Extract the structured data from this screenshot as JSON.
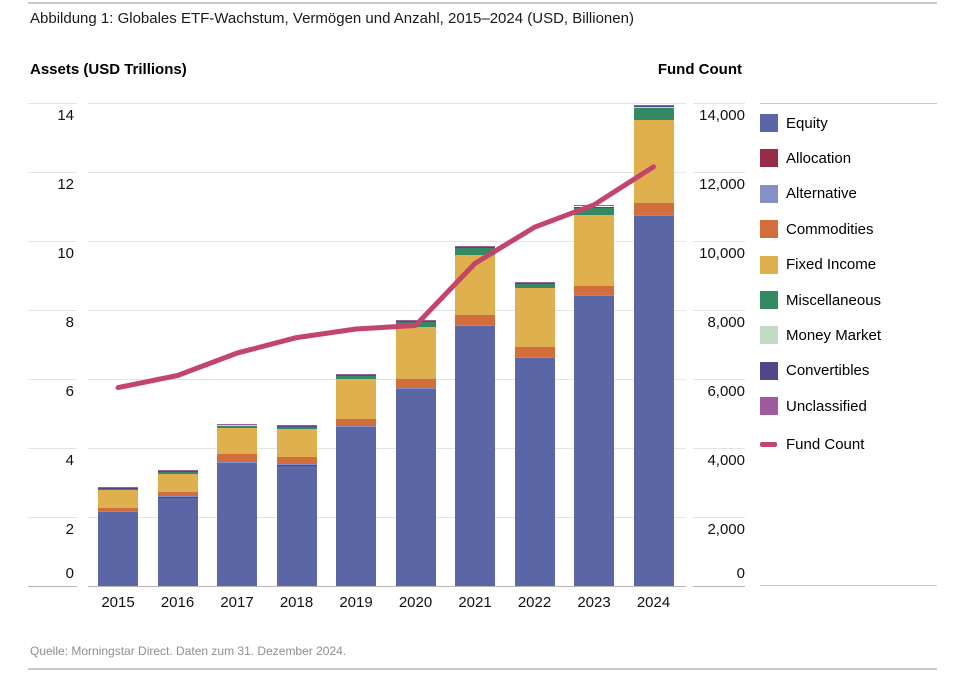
{
  "title": "Abbildung 1: Globales ETF-Wachstum, Vermögen und Anzahl, 2015–2024 (USD, Billionen)",
  "left_axis_title": "Assets (USD Trillions)",
  "right_axis_title": "Fund Count",
  "footer": "Quelle: Morningstar Direct. Daten zum 31. Dezember 2024.",
  "colors": {
    "grid": "#e4e4e4",
    "axis_line": "#b5b5b5",
    "frame_line": "#c9c9c9",
    "equity": "#5B66A7",
    "allocation": "#992B49",
    "alternative": "#8591C4",
    "commodities": "#D26E3C",
    "fixed_income": "#E0B04E",
    "miscellaneous": "#338A62",
    "money_market": "#C2DCC5",
    "convertibles": "#524589",
    "unclassified": "#9E5C9F",
    "fund_count_line": "#C4456B"
  },
  "chart_data": {
    "type": "bar",
    "subtype": "stacked-bars-with-dual-axis-line",
    "title": "Abbildung 1: Globales ETF-Wachstum, Vermögen und Anzahl, 2015–2024 (USD, Billionen)",
    "categories": [
      "2015",
      "2016",
      "2017",
      "2018",
      "2019",
      "2020",
      "2021",
      "2022",
      "2023",
      "2024"
    ],
    "series": [
      {
        "name": "Equity",
        "color_key": "equity",
        "values": [
          2.15,
          2.58,
          3.57,
          3.51,
          4.62,
          5.72,
          7.55,
          6.62,
          8.42,
          10.74
        ]
      },
      {
        "name": "Allocation",
        "color_key": "allocation",
        "values": [
          0.01,
          0.01,
          0.01,
          0.01,
          0.01,
          0.01,
          0.01,
          0.01,
          0.01,
          0.01
        ]
      },
      {
        "name": "Alternative",
        "color_key": "alternative",
        "values": [
          0.01,
          0.01,
          0.01,
          0.01,
          0.01,
          0.01,
          0.01,
          0.01,
          0.01,
          0.01
        ]
      },
      {
        "name": "Commodities",
        "color_key": "commodities",
        "values": [
          0.1,
          0.12,
          0.23,
          0.21,
          0.2,
          0.26,
          0.29,
          0.29,
          0.26,
          0.35
        ]
      },
      {
        "name": "Fixed Income",
        "color_key": "fixed_income",
        "values": [
          0.52,
          0.53,
          0.76,
          0.82,
          1.16,
          1.51,
          1.74,
          1.71,
          2.06,
          2.41
        ]
      },
      {
        "name": "Miscellaneous",
        "color_key": "miscellaneous",
        "values": [
          0.04,
          0.07,
          0.08,
          0.06,
          0.09,
          0.14,
          0.2,
          0.12,
          0.21,
          0.34
        ]
      },
      {
        "name": "Money Market",
        "color_key": "money_market",
        "values": [
          0.01,
          0.01,
          0.02,
          0.02,
          0.02,
          0.02,
          0.02,
          0.02,
          0.02,
          0.03
        ]
      },
      {
        "name": "Convertibles",
        "color_key": "convertibles",
        "values": [
          0.01,
          0.01,
          0.01,
          0.01,
          0.01,
          0.01,
          0.01,
          0.01,
          0.01,
          0.01
        ]
      },
      {
        "name": "Unclassified",
        "color_key": "unclassified",
        "values": [
          0.01,
          0.01,
          0.02,
          0.03,
          0.03,
          0.03,
          0.03,
          0.03,
          0.03,
          0.03
        ]
      }
    ],
    "line_series": {
      "name": "Fund Count",
      "color_key": "fund_count_line",
      "values": [
        5750,
        6100,
        6750,
        7200,
        7450,
        7550,
        9350,
        10400,
        11050,
        12150
      ]
    },
    "left_axis": {
      "title": "Assets (USD Trillions)",
      "range": [
        0,
        14
      ],
      "ticks": [
        0,
        2,
        4,
        6,
        8,
        10,
        12,
        14
      ]
    },
    "right_axis": {
      "title": "Fund Count",
      "range": [
        0,
        14000
      ],
      "ticks": [
        0,
        2000,
        4000,
        6000,
        8000,
        10000,
        12000,
        14000
      ]
    },
    "legend_position": "right",
    "grid": true
  }
}
